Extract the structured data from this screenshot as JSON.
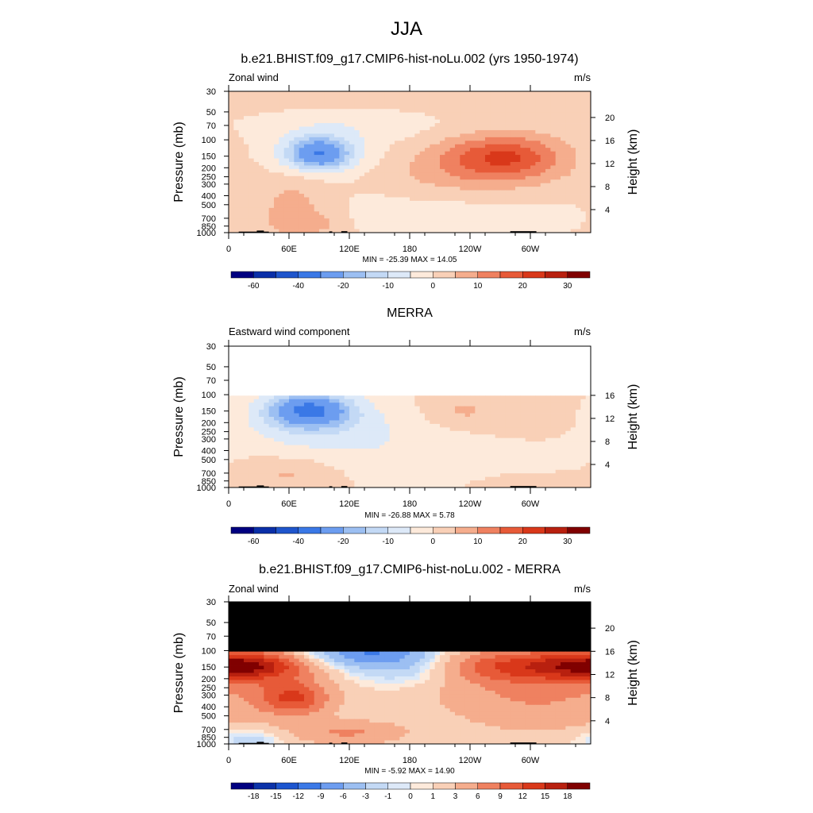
{
  "figure_title": "JJA",
  "chart_data": [
    {
      "type": "heatmap",
      "title": "b.e21.BHIST.f09_g17.CMIP6-hist-noLu.002 (yrs 1950-1974)",
      "left_label": "Zonal wind",
      "units": "m/s",
      "ylabel": "Pressure (mb)",
      "y2label": "Height (km)",
      "x_ticks": [
        "0",
        "60E",
        "120E",
        "180",
        "120W",
        "60W"
      ],
      "y_ticks": [
        "30",
        "50",
        "70",
        "100",
        "150",
        "200",
        "250",
        "300",
        "400",
        "500",
        "700",
        "850",
        "1000"
      ],
      "y2_ticks": [
        "20",
        "16",
        "12",
        "8",
        "4"
      ],
      "stats": "MIN = -25.39  MAX =  14.05",
      "min": -25.39,
      "max": 14.05,
      "colorbar_ticks": [
        "-60",
        "-40",
        "-20",
        "-10",
        "0",
        "10",
        "20",
        "30"
      ],
      "field": "model"
    },
    {
      "type": "heatmap",
      "title": "MERRA",
      "left_label": "Eastward wind component",
      "units": "m/s",
      "ylabel": "Pressure (mb)",
      "y2label": "Height (km)",
      "x_ticks": [
        "0",
        "60E",
        "120E",
        "180",
        "120W",
        "60W"
      ],
      "y_ticks": [
        "30",
        "50",
        "70",
        "100",
        "150",
        "200",
        "250",
        "300",
        "400",
        "500",
        "700",
        "850",
        "1000"
      ],
      "y2_ticks": [
        "16",
        "12",
        "8",
        "4"
      ],
      "stats": "MIN = -26.88  MAX =   5.78",
      "min": -26.88,
      "max": 5.78,
      "colorbar_ticks": [
        "-60",
        "-40",
        "-20",
        "-10",
        "0",
        "10",
        "20",
        "30"
      ],
      "field": "obs"
    },
    {
      "type": "heatmap",
      "title": "b.e21.BHIST.f09_g17.CMIP6-hist-noLu.002 - MERRA",
      "left_label": "Zonal wind",
      "units": "m/s",
      "ylabel": "Pressure (mb)",
      "y2label": "Height (km)",
      "x_ticks": [
        "0",
        "60E",
        "120E",
        "180",
        "120W",
        "60W"
      ],
      "y_ticks": [
        "30",
        "50",
        "70",
        "100",
        "150",
        "200",
        "250",
        "300",
        "400",
        "500",
        "700",
        "850",
        "1000"
      ],
      "y2_ticks": [
        "20",
        "16",
        "12",
        "8",
        "4"
      ],
      "stats": "MIN =  -5.92  MAX =  14.90",
      "min": -5.92,
      "max": 14.9,
      "colorbar_ticks": [
        "-18",
        "-15",
        "-12",
        "-9",
        "-6",
        "-3",
        "-1",
        "0",
        "1",
        "3",
        "6",
        "9",
        "12",
        "15",
        "18"
      ],
      "field": "diff"
    }
  ],
  "colors": {
    "main_scale": [
      "#000080",
      "#0a2fa8",
      "#1f55cc",
      "#3a78e6",
      "#6c9df0",
      "#9cbff2",
      "#c3d9f5",
      "#dde9f8",
      "#fdeadb",
      "#f9d0b7",
      "#f5ad8d",
      "#ef8160",
      "#e75a38",
      "#d9381a",
      "#b8200f",
      "#800000"
    ],
    "diff_scale": [
      "#000080",
      "#0b32a9",
      "#1c55cf",
      "#3b79e7",
      "#6d9df0",
      "#9cbff2",
      "#c3d9f5",
      "#dde9f8",
      "#fdeadb",
      "#f9d0b7",
      "#f5ad8d",
      "#ef8160",
      "#e75a38",
      "#d9381a",
      "#b8200f",
      "#800000"
    ],
    "missing": "#000000"
  }
}
